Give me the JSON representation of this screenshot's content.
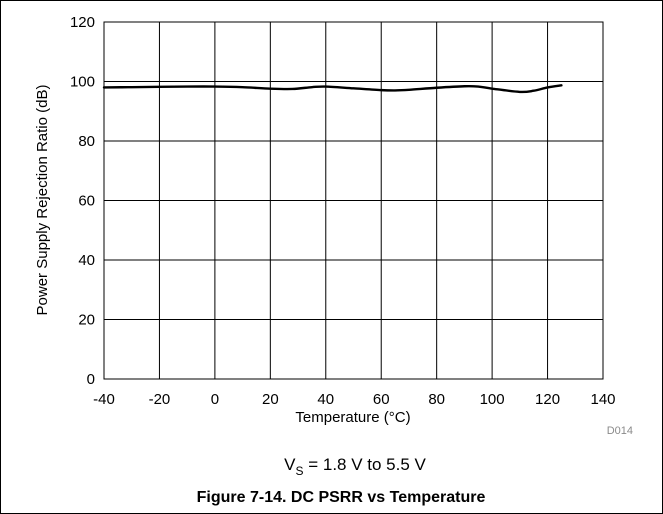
{
  "chart_data": {
    "type": "line",
    "xlabel": "Temperature (°C)",
    "ylabel": "Power Supply Rejection Ratio (dB)",
    "xlim": [
      -40,
      140
    ],
    "ylim": [
      0,
      120
    ],
    "xticks": [
      "-40",
      "-20",
      "0",
      "20",
      "40",
      "60",
      "80",
      "100",
      "120",
      "140"
    ],
    "yticks": [
      "0",
      "20",
      "40",
      "60",
      "80",
      "100",
      "120"
    ],
    "grid": true,
    "series": [
      {
        "color": "#000000",
        "x": [
          -40,
          -30,
          -20,
          -10,
          0,
          10,
          20,
          28,
          35,
          40,
          50,
          60,
          65,
          70,
          80,
          90,
          95,
          100,
          110,
          115,
          120,
          125
        ],
        "y": [
          98.0,
          98.1,
          98.2,
          98.3,
          98.3,
          98.1,
          97.6,
          97.5,
          98.1,
          98.3,
          97.7,
          97.1,
          97.0,
          97.2,
          97.9,
          98.4,
          98.3,
          97.6,
          96.5,
          96.9,
          98.0,
          98.7
        ]
      }
    ]
  },
  "figure": {
    "code": "D014",
    "condition_main": "V",
    "condition_sub": "S",
    "condition_rest": " = 1.8 V to 5.5 V",
    "caption": "Figure 7-14. DC PSRR vs Temperature"
  }
}
